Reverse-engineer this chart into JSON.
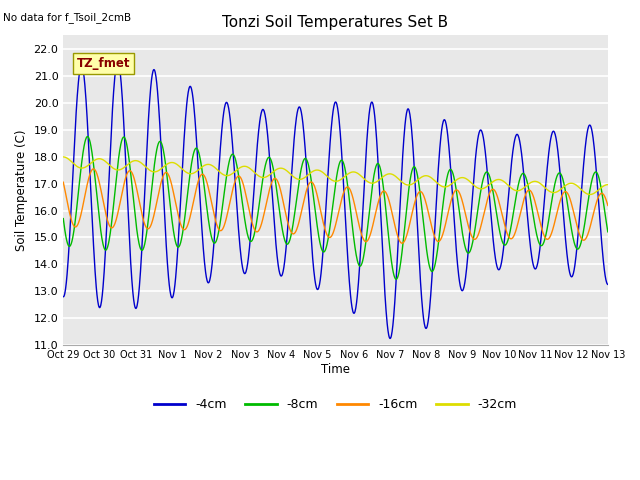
{
  "title": "Tonzi Soil Temperatures Set B",
  "xlabel": "Time",
  "ylabel": "Soil Temperature (C)",
  "note": "No data for f_Tsoil_2cmB",
  "legend_label": "TZ_fmet",
  "ylim": [
    11.0,
    22.5
  ],
  "yticks": [
    11.0,
    12.0,
    13.0,
    14.0,
    15.0,
    16.0,
    17.0,
    18.0,
    19.0,
    20.0,
    21.0,
    22.0
  ],
  "xtick_labels": [
    "Oct 29",
    "Oct 30",
    "Oct 31",
    "Nov 1",
    "Nov 2",
    "Nov 3",
    "Nov 4",
    "Nov 5",
    "Nov 6",
    "Nov 7",
    "Nov 8",
    "Nov 9",
    "Nov 10",
    "Nov 11",
    "Nov 12",
    "Nov 13"
  ],
  "colors": {
    "4cm": "#0000cc",
    "8cm": "#00bb00",
    "16cm": "#ff8800",
    "32cm": "#dddd00"
  },
  "bg_color": "#e8e8e8",
  "grid_color": "#ffffff",
  "legend_box_facecolor": "#ffffaa",
  "legend_box_edgecolor": "#999900",
  "legend_text_color": "#880000"
}
